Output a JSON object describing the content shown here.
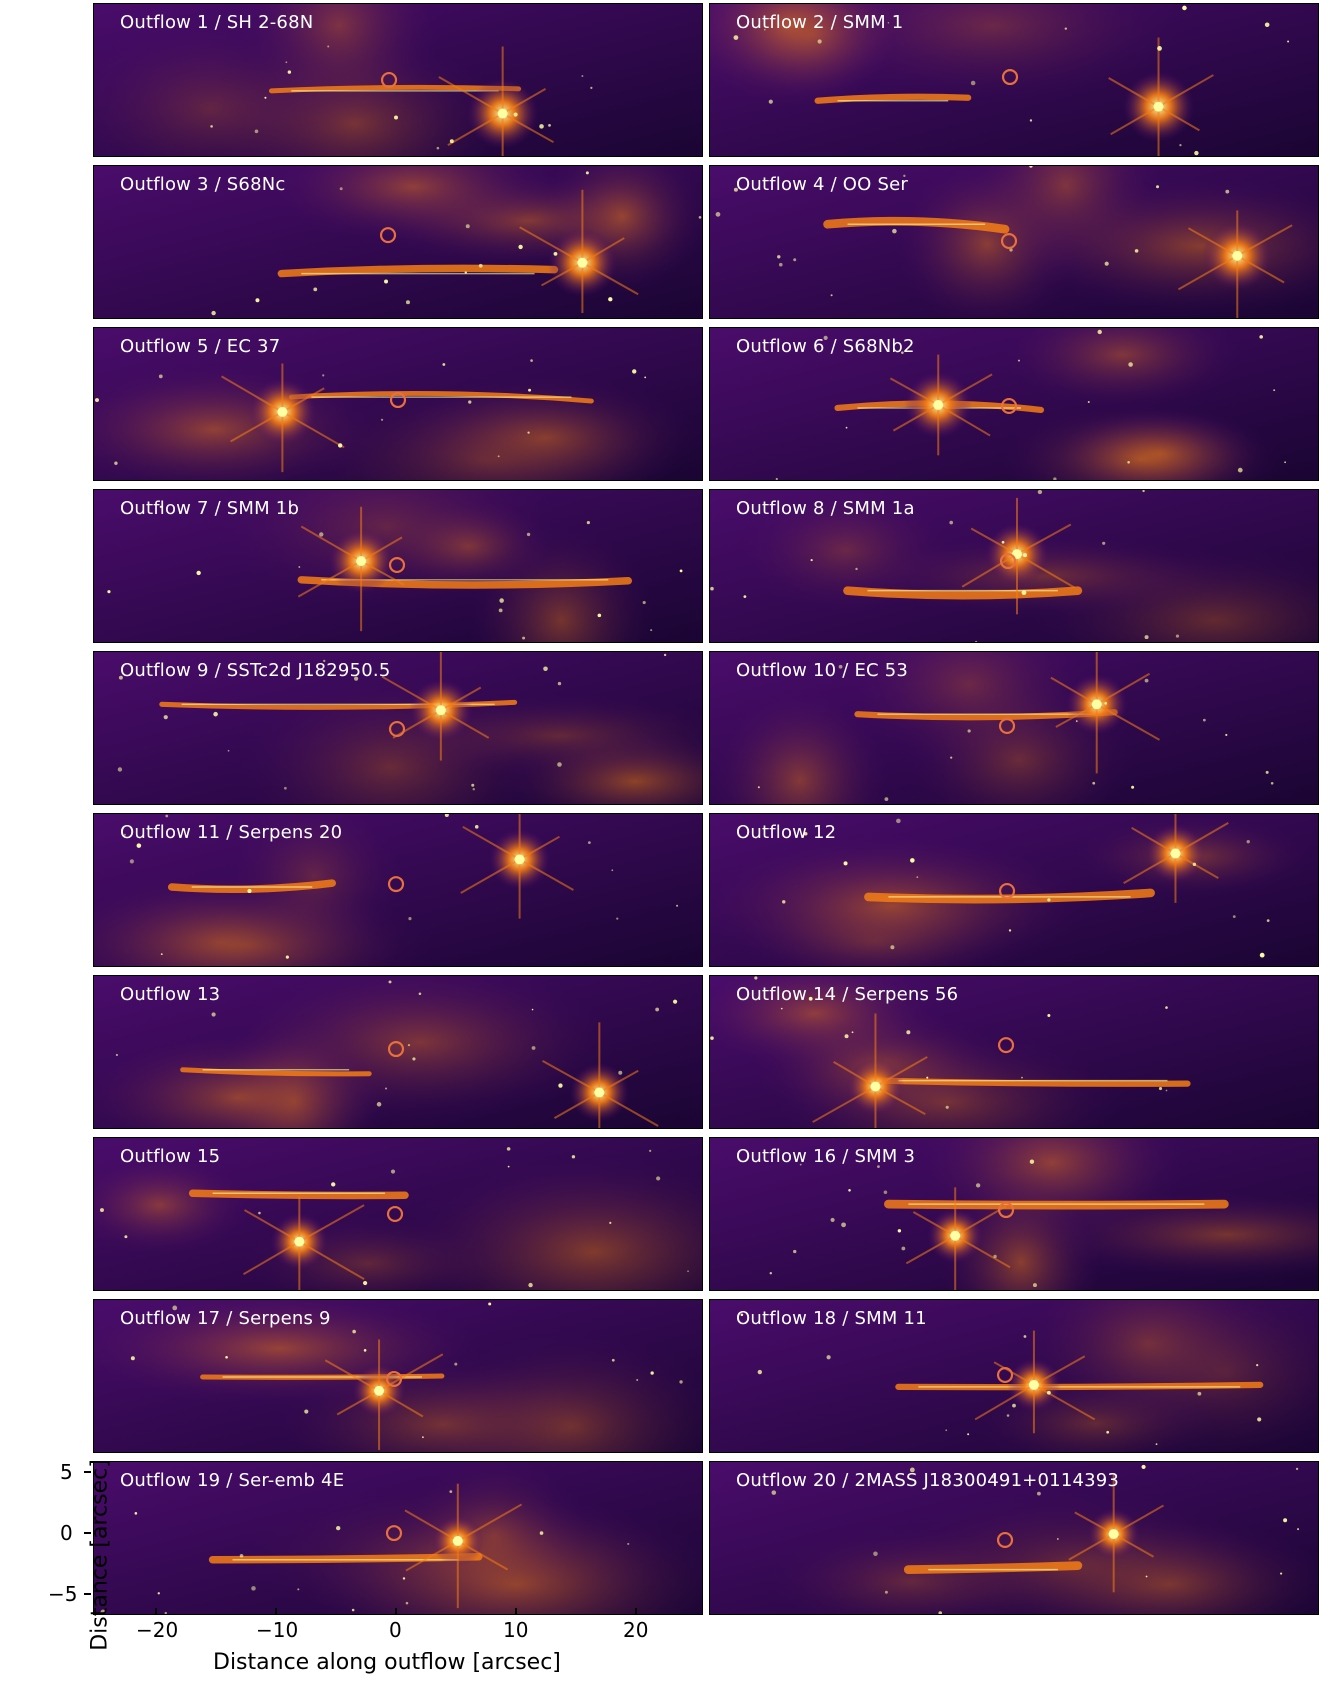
{
  "panels": [
    {
      "label": "Outflow 1 / SH 2-68N"
    },
    {
      "label": "Outflow 2 / SMM 1"
    },
    {
      "label": "Outflow 3 / S68Nc"
    },
    {
      "label": "Outflow 4 / OO Ser"
    },
    {
      "label": "Outflow 5 / EC 37"
    },
    {
      "label": "Outflow 6 / S68Nb2"
    },
    {
      "label": "Outflow 7 / SMM 1b"
    },
    {
      "label": "Outflow 8 / SMM 1a"
    },
    {
      "label": "Outflow 9 / SSTc2d J182950.5"
    },
    {
      "label": "Outflow 10 / EC 53"
    },
    {
      "label": "Outflow 11 / Serpens 20"
    },
    {
      "label": "Outflow 12"
    },
    {
      "label": "Outflow 13"
    },
    {
      "label": "Outflow 14 / Serpens 56"
    },
    {
      "label": "Outflow 15"
    },
    {
      "label": "Outflow 16 / SMM 3"
    },
    {
      "label": "Outflow 17 / Serpens 9"
    },
    {
      "label": "Outflow 18 / SMM 11"
    },
    {
      "label": "Outflow 19 / Ser-emb 4E"
    },
    {
      "label": "Outflow 20 / 2MASS J18300491+0114393"
    }
  ],
  "axes": {
    "xlabel": "Distance along outflow [arcsec]",
    "ylabel": "Distance [arcsec]",
    "xticks": [
      "−20",
      "−10",
      "0",
      "10",
      "20"
    ],
    "yticks": [
      "5",
      "0",
      "−5"
    ]
  },
  "colors": {
    "bg_dark": "#1a0533",
    "bg_mid": "#4a0c6b",
    "emission": "#f57d15",
    "bright": "#fcffa4",
    "marker_ring": "#e8703a"
  }
}
